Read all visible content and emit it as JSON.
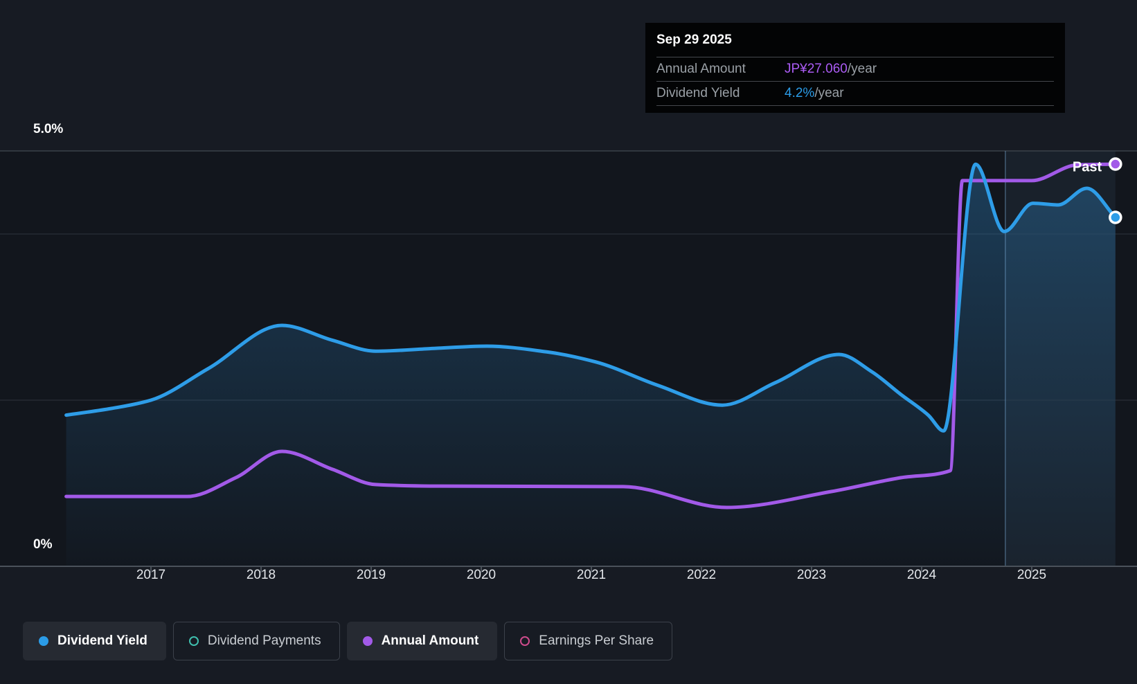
{
  "tooltip": {
    "date": "Sep 29 2025",
    "rows": [
      {
        "label": "Annual Amount",
        "value": "JP¥27.060",
        "suffix": "/year"
      },
      {
        "label": "Dividend Yield",
        "value": "4.2%",
        "suffix": "/year"
      }
    ]
  },
  "axis": {
    "y_top_label": "5.0%",
    "y_bottom_label": "0%",
    "years": [
      "2017",
      "2018",
      "2019",
      "2020",
      "2021",
      "2022",
      "2023",
      "2024",
      "2025"
    ]
  },
  "past_label": "Past",
  "legend": {
    "items": [
      {
        "label": "Dividend Yield",
        "active": true,
        "marker": "filled",
        "color": "#2b9ce8"
      },
      {
        "label": "Dividend Payments",
        "active": false,
        "marker": "ring",
        "color": "#3fbfae"
      },
      {
        "label": "Annual Amount",
        "active": true,
        "marker": "filled",
        "color": "#a25ae8"
      },
      {
        "label": "Earnings Per Share",
        "active": false,
        "marker": "ring",
        "color": "#ce4b8c"
      }
    ]
  },
  "colors": {
    "background": "#171b23",
    "plot_background": "#12161d",
    "grid_strong": "#3b424a",
    "grid_faint": "#242a33",
    "axis_line": "#4a515a",
    "dividend_yield_line": "#2e9de8",
    "annual_amount_line": "#a25ae8",
    "area_fill_top": "rgba(44,125,185,0.40)",
    "area_fill_bottom": "rgba(44,125,185,0.02)",
    "hover_band": "rgba(120,165,215,0.08)",
    "hover_line": "rgba(125,170,215,0.45)",
    "marker_stroke": "#ffffff"
  },
  "chart_data": {
    "type": "line",
    "title": "Dividend history",
    "x_range": [
      2016.23,
      2025.76
    ],
    "x_ticks": [
      2017,
      2018,
      2019,
      2020,
      2021,
      2022,
      2023,
      2024,
      2025
    ],
    "y_axis": {
      "unit": "%",
      "min": 0,
      "max": 5,
      "gridlines_pct": [
        5.0,
        4.0,
        2.0
      ],
      "top_label_pct": 5.0,
      "bottom_label_pct": 0
    },
    "hover_window": {
      "start_year": 2024.76,
      "end_year": 2025.76,
      "label": "Past"
    },
    "series": [
      {
        "name": "Dividend Yield",
        "unit": "%",
        "style": "area+line",
        "end_marker": true,
        "points": [
          {
            "x": 2016.23,
            "y": 1.82
          },
          {
            "x": 2016.64,
            "y": 1.9
          },
          {
            "x": 2017.0,
            "y": 2.0
          },
          {
            "x": 2017.52,
            "y": 2.38
          },
          {
            "x": 2018.19,
            "y": 2.9
          },
          {
            "x": 2018.65,
            "y": 2.72
          },
          {
            "x": 2019.04,
            "y": 2.59
          },
          {
            "x": 2019.53,
            "y": 2.62
          },
          {
            "x": 2020.05,
            "y": 2.65
          },
          {
            "x": 2020.6,
            "y": 2.58
          },
          {
            "x": 2021.04,
            "y": 2.46
          },
          {
            "x": 2021.6,
            "y": 2.18
          },
          {
            "x": 2022.19,
            "y": 1.94
          },
          {
            "x": 2022.67,
            "y": 2.21
          },
          {
            "x": 2023.25,
            "y": 2.55
          },
          {
            "x": 2023.55,
            "y": 2.34
          },
          {
            "x": 2023.81,
            "y": 2.07
          },
          {
            "x": 2024.06,
            "y": 1.82
          },
          {
            "x": 2024.2,
            "y": 1.63
          },
          {
            "x": 2024.49,
            "y": 4.84
          },
          {
            "x": 2024.75,
            "y": 4.03
          },
          {
            "x": 2025.01,
            "y": 4.37
          },
          {
            "x": 2025.24,
            "y": 4.35
          },
          {
            "x": 2025.5,
            "y": 4.55
          },
          {
            "x": 2025.76,
            "y": 4.2
          }
        ]
      },
      {
        "name": "Annual Amount",
        "unit": "JP¥/year",
        "style": "line",
        "end_marker": true,
        "points": [
          {
            "x": 2016.23,
            "y": 4.7
          },
          {
            "x": 2017.33,
            "y": 4.7
          },
          {
            "x": 2017.77,
            "y": 5.96
          },
          {
            "x": 2018.19,
            "y": 7.73
          },
          {
            "x": 2018.65,
            "y": 6.52
          },
          {
            "x": 2019.04,
            "y": 5.5
          },
          {
            "x": 2019.53,
            "y": 5.4
          },
          {
            "x": 2021.29,
            "y": 5.36
          },
          {
            "x": 2022.23,
            "y": 3.96
          },
          {
            "x": 2023.18,
            "y": 5.03
          },
          {
            "x": 2023.81,
            "y": 5.96
          },
          {
            "x": 2024.26,
            "y": 6.43
          },
          {
            "x": 2024.37,
            "y": 25.95
          },
          {
            "x": 2025.0,
            "y": 25.95
          },
          {
            "x": 2025.41,
            "y": 27.0
          },
          {
            "x": 2025.76,
            "y": 27.06
          }
        ]
      }
    ]
  }
}
